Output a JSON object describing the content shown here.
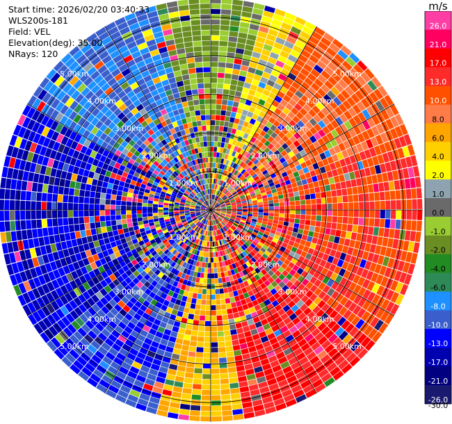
{
  "meta": {
    "start_time": "Start time: 2026/02/20 03:40:33",
    "station": "WLS200s-181",
    "field": "Field: VEL",
    "elevation": "Elevation(deg): 35.00",
    "nrays": "NRays: 120"
  },
  "chart_data": {
    "type": "heatmap",
    "projection": "polar-ppi",
    "field": "VEL",
    "units": "m/s",
    "n_rays": 120,
    "range_max_km": 5.5,
    "range_rings_km": [
      1,
      2,
      3,
      4,
      5
    ],
    "range_ring_labels": [
      "1.00km",
      "2.00km",
      "3.00km",
      "4.00km",
      "5.00km"
    ],
    "colorbar": {
      "title": "m/s",
      "ticks": [
        "26.0",
        "21.0",
        "17.0",
        "13.0",
        "10.0",
        "8.0",
        "6.0",
        "4.0",
        "2.0",
        "1.0",
        "0.0",
        "-1.0",
        "-2.0",
        "-4.0",
        "-6.0",
        "-8.0",
        "-10.0",
        "-13.0",
        "-17.0",
        "-21.0",
        "-26.0",
        "-30.0"
      ],
      "bins": [
        {
          "label": "26.0",
          "color": "#ff3ea5"
        },
        {
          "label": "21.0",
          "color": "#ff0060"
        },
        {
          "label": "17.0",
          "color": "#ff0000"
        },
        {
          "label": "13.0",
          "color": "#ff2a2a"
        },
        {
          "label": "10.0",
          "color": "#ff5000"
        },
        {
          "label": "8.0",
          "color": "#ff7b47"
        },
        {
          "label": "6.0",
          "color": "#ffa500"
        },
        {
          "label": "4.0",
          "color": "#ffd000"
        },
        {
          "label": "2.0",
          "color": "#ffff00"
        },
        {
          "label": "1.0",
          "color": "#8ea3b0"
        },
        {
          "label": "0.0",
          "color": "#6a6a6a"
        },
        {
          "label": "-1.0",
          "color": "#9acd32"
        },
        {
          "label": "-2.0",
          "color": "#6b8e23"
        },
        {
          "label": "-4.0",
          "color": "#228b22"
        },
        {
          "label": "-6.0",
          "color": "#2e8b57"
        },
        {
          "label": "-8.0",
          "color": "#1e90ff"
        },
        {
          "label": "-10.0",
          "color": "#3a5fcd"
        },
        {
          "label": "-13.0",
          "color": "#0000ff"
        },
        {
          "label": "-17.0",
          "color": "#0000b0"
        },
        {
          "label": "-21.0",
          "color": "#000080"
        },
        {
          "label": "-26.0",
          "color": "#191970"
        }
      ]
    },
    "dominant_sectors": [
      {
        "azimuth_deg": [
          345,
          15
        ],
        "velocity_ms": -2.0,
        "note": "olive/green near-zero band"
      },
      {
        "azimuth_deg": [
          15,
          30
        ],
        "velocity_ms": 2.0,
        "note": "yellow band"
      },
      {
        "azimuth_deg": [
          30,
          70
        ],
        "velocity_ms": 8.0,
        "note": "salmon/orange band"
      },
      {
        "azimuth_deg": [
          70,
          130
        ],
        "velocity_ms": 10.0,
        "note": "orange-red band"
      },
      {
        "azimuth_deg": [
          130,
          170
        ],
        "velocity_ms": 13.0,
        "note": "red band"
      },
      {
        "azimuth_deg": [
          170,
          195
        ],
        "velocity_ms": 4.0,
        "note": "yellow/orange band"
      },
      {
        "azimuth_deg": [
          195,
          230
        ],
        "velocity_ms": -13.0,
        "note": "mixed blue"
      },
      {
        "azimuth_deg": [
          230,
          300
        ],
        "velocity_ms": -17.0,
        "note": "blue band"
      },
      {
        "azimuth_deg": [
          300,
          345
        ],
        "velocity_ms": -10.0,
        "note": "blue/steel band"
      }
    ]
  }
}
